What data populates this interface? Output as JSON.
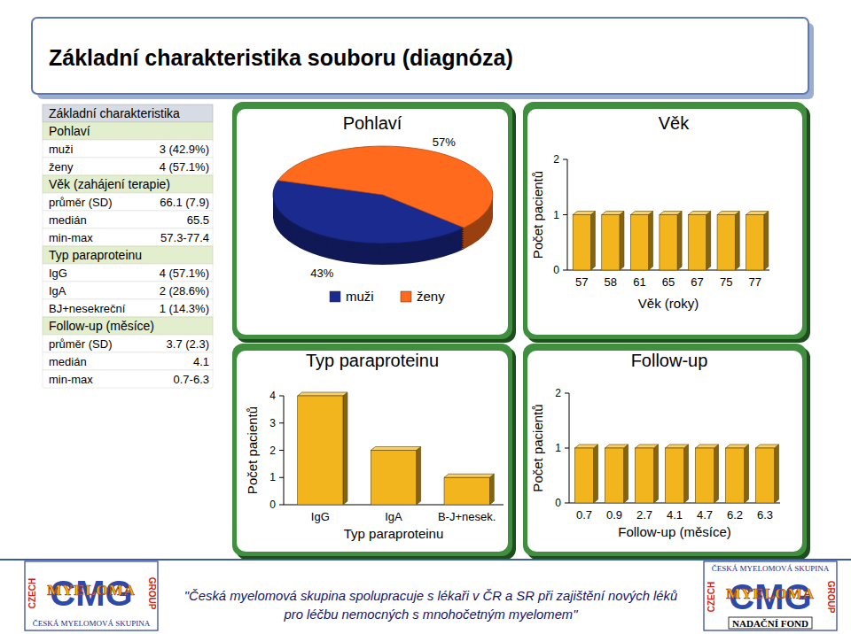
{
  "title": "Základní charakteristika souboru (diagnóza)",
  "table": {
    "header": "Základní charakteristika",
    "sections": [
      {
        "title": "Pohlaví",
        "rows": [
          [
            "muži",
            "3 (42.9%)"
          ],
          [
            "ženy",
            "4 (57.1%)"
          ]
        ]
      },
      {
        "title": "Věk (zahájení terapie)",
        "rows": [
          [
            "průměr (SD)",
            "66.1 (7.9)"
          ],
          [
            "medián",
            "65.5"
          ],
          [
            "min-max",
            "57.3-77.4"
          ]
        ]
      },
      {
        "title": "Typ paraproteinu",
        "rows": [
          [
            "IgG",
            "4 (57.1%)"
          ],
          [
            "IgA",
            "2 (28.6%)"
          ],
          [
            "BJ+nesekreční",
            "1 (14.3%)"
          ]
        ]
      },
      {
        "title": "Follow-up (měsíce)",
        "rows": [
          [
            "průměr (SD)",
            "3.7 (2.3)"
          ],
          [
            "medián",
            "4.1"
          ],
          [
            "min-max",
            "0.7-6.3"
          ]
        ]
      }
    ]
  },
  "chart_data": [
    {
      "type": "pie",
      "title": "Pohlaví",
      "categories": [
        "muži",
        "ženy"
      ],
      "values": [
        43,
        57
      ],
      "value_labels": [
        "43%",
        "57%"
      ],
      "colors": [
        "#1a2a8e",
        "#ff6a1c"
      ],
      "data_labels": true,
      "legend": "bottom"
    },
    {
      "type": "bar",
      "title": "Věk",
      "categories": [
        "57",
        "58",
        "61",
        "65",
        "67",
        "75",
        "77"
      ],
      "values": [
        1,
        1,
        1,
        1,
        1,
        1,
        1
      ],
      "color": "#f2b51e",
      "xlabel": "Věk (roky)",
      "ylabel": "Počet pacientů",
      "ylim": [
        0,
        2
      ],
      "yticks": [
        0,
        1,
        2
      ],
      "grid": false
    },
    {
      "type": "bar",
      "title": "Typ paraproteinu",
      "categories": [
        "IgG",
        "IgA",
        "B-J+nesek."
      ],
      "values": [
        4,
        2,
        1
      ],
      "color": "#f2b51e",
      "xlabel": "Typ paraproteinu",
      "ylabel": "Počet pacientů",
      "ylim": [
        0,
        4
      ],
      "yticks": [
        0,
        1,
        2,
        3,
        4
      ],
      "grid": false
    },
    {
      "type": "bar",
      "title": "Follow-up",
      "categories": [
        "0.7",
        "0.9",
        "2.7",
        "4.1",
        "4.7",
        "6.2",
        "6.3"
      ],
      "values": [
        1,
        1,
        1,
        1,
        1,
        1,
        1
      ],
      "color": "#f2b51e",
      "xlabel": "Follow-up (měsíce)",
      "ylabel": "Počet pacientů",
      "ylim": [
        0,
        2
      ],
      "yticks": [
        0,
        1,
        2
      ],
      "grid": false
    }
  ],
  "footer": {
    "text": [
      "\"Česká myelomová skupina spolupracuje s lékaři v ČR a SR při zajištění nových léků",
      "pro léčbu nemocných s mnohočetným myelomem\""
    ],
    "logos": [
      {
        "country": "CZECH",
        "acronym": "CMG",
        "name": "MYELOMA",
        "group": "GROUP",
        "caption": "ČESKÁ MYELOMOVÁ SKUPINA"
      },
      {
        "caption_top": "ČESKÁ MYELOMOVÁ SKUPINA",
        "country": "CZECH",
        "acronym": "CMG",
        "name": "MYELOMA",
        "group": "GROUP",
        "caption": "NADAČNÍ FOND"
      }
    ]
  }
}
